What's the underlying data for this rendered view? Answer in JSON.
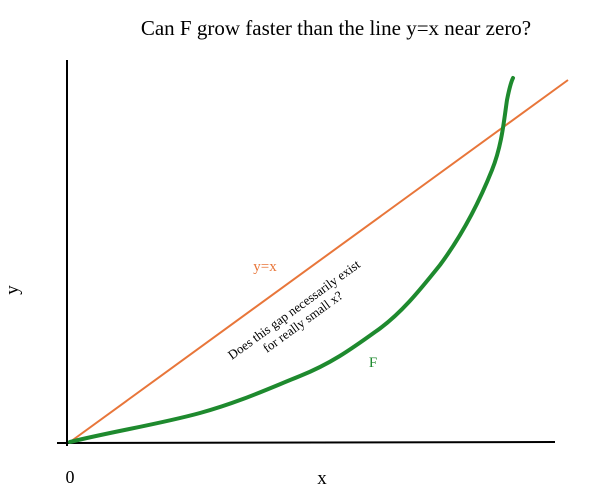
{
  "title": "Can F grow faster than the line y=x near zero?",
  "axes": {
    "x_label": "x",
    "y_label": "y",
    "origin_label": "0"
  },
  "annotations": {
    "line_label": "y=x",
    "curve_label": "F",
    "question": [
      "Does this gap necessarily exist",
      "for really small x?"
    ]
  }
}
